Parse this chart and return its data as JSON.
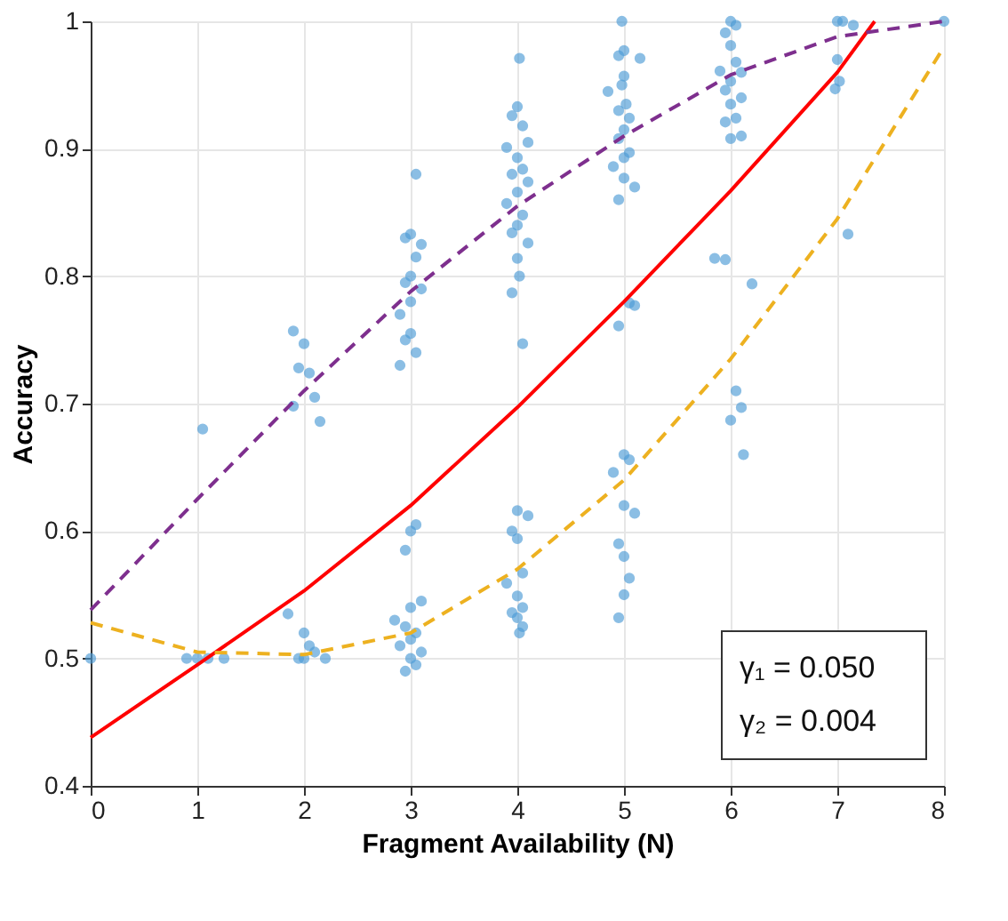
{
  "chart_data": {
    "type": "scatter",
    "xlabel": "Fragment Availability (N)",
    "ylabel": "Accuracy",
    "xlim": [
      0,
      8
    ],
    "ylim": [
      0.4,
      1
    ],
    "xticks": [
      0,
      1,
      2,
      3,
      4,
      5,
      6,
      7,
      8
    ],
    "yticks": [
      0.4,
      0.5,
      0.6,
      0.7,
      0.8,
      0.9,
      1
    ],
    "grid": true,
    "annotations": [
      "γ₁ = 0.050",
      "γ₂ = 0.004"
    ],
    "series": [
      {
        "marker": "circle",
        "color": "#4d9bd6",
        "x": [
          0,
          0.9,
          1,
          1.05,
          1.1,
          1.25,
          1.9,
          2.0,
          1.95,
          2.05,
          2.1,
          1.9,
          2.15,
          1.85,
          2.0,
          2.05,
          2.1,
          2.0,
          1.95,
          2.2,
          3.05,
          3.0,
          2.95,
          3.1,
          3.05,
          3.0,
          2.95,
          3.1,
          3.0,
          2.9,
          3.0,
          2.95,
          3.05,
          2.9,
          3.05,
          3.0,
          2.95,
          3.1,
          3.0,
          2.85,
          2.95,
          3.05,
          3.0,
          2.9,
          3.1,
          3.0,
          3.05,
          2.95,
          4.02,
          4.0,
          3.95,
          4.05,
          4.1,
          3.9,
          4.0,
          4.05,
          3.95,
          4.1,
          4.0,
          3.9,
          4.05,
          4.0,
          3.95,
          4.1,
          4.0,
          4.02,
          3.95,
          4.05,
          4.0,
          4.1,
          3.95,
          4.0,
          4.05,
          3.9,
          4.0,
          4.05,
          3.95,
          4.0,
          4.05,
          4.02,
          4.98,
          5.0,
          4.95,
          5.15,
          5.0,
          4.98,
          4.85,
          5.02,
          4.95,
          5.05,
          5.0,
          4.95,
          5.05,
          5.0,
          4.9,
          5.0,
          5.1,
          4.95,
          5.05,
          5.1,
          4.95,
          5.0,
          5.05,
          4.9,
          5.0,
          5.1,
          4.95,
          5.0,
          5.05,
          5.0,
          4.95,
          6.0,
          6.05,
          5.95,
          6.0,
          6.05,
          5.9,
          6.1,
          6.0,
          5.95,
          6.1,
          6.0,
          6.05,
          5.95,
          6.1,
          6.0,
          5.85,
          5.95,
          6.2,
          6.05,
          6.1,
          6.0,
          6.12,
          7.0,
          7.05,
          7.15,
          7.0,
          7.02,
          6.98,
          7.1,
          8.0
        ],
        "values": [
          0.5,
          0.5,
          0.5,
          0.68,
          0.5,
          0.5,
          0.757,
          0.747,
          0.728,
          0.724,
          0.705,
          0.698,
          0.686,
          0.535,
          0.52,
          0.51,
          0.505,
          0.5,
          0.5,
          0.5,
          0.88,
          0.833,
          0.83,
          0.825,
          0.815,
          0.8,
          0.795,
          0.79,
          0.78,
          0.77,
          0.755,
          0.75,
          0.74,
          0.73,
          0.605,
          0.6,
          0.585,
          0.545,
          0.54,
          0.53,
          0.525,
          0.52,
          0.515,
          0.51,
          0.505,
          0.5,
          0.495,
          0.49,
          0.971,
          0.933,
          0.926,
          0.918,
          0.905,
          0.901,
          0.893,
          0.884,
          0.88,
          0.874,
          0.866,
          0.857,
          0.848,
          0.84,
          0.834,
          0.826,
          0.814,
          0.8,
          0.787,
          0.747,
          0.616,
          0.612,
          0.6,
          0.594,
          0.567,
          0.559,
          0.549,
          0.54,
          0.536,
          0.532,
          0.525,
          0.52,
          1.0,
          0.977,
          0.973,
          0.971,
          0.957,
          0.95,
          0.945,
          0.935,
          0.93,
          0.924,
          0.915,
          0.908,
          0.897,
          0.893,
          0.886,
          0.877,
          0.87,
          0.86,
          0.779,
          0.777,
          0.761,
          0.66,
          0.656,
          0.646,
          0.62,
          0.614,
          0.59,
          0.58,
          0.563,
          0.55,
          0.532,
          1.0,
          0.997,
          0.991,
          0.981,
          0.968,
          0.961,
          0.96,
          0.953,
          0.946,
          0.94,
          0.935,
          0.924,
          0.921,
          0.91,
          0.908,
          0.814,
          0.813,
          0.794,
          0.71,
          0.697,
          0.687,
          0.66,
          1.0,
          1.0,
          0.997,
          0.97,
          0.953,
          0.947,
          0.833,
          1.0
        ]
      },
      {
        "type": "line",
        "color": "#ff0000",
        "line_style": "solid",
        "x": [
          0,
          1,
          2,
          3,
          4,
          5,
          6,
          7,
          7.35
        ],
        "values": [
          0.438,
          0.495,
          0.553,
          0.62,
          0.697,
          0.78,
          0.867,
          0.96,
          1.0
        ]
      },
      {
        "type": "line",
        "color": "#7e2f8e",
        "line_style": "dashed",
        "x": [
          0,
          1,
          2,
          3,
          4,
          5,
          6,
          7,
          8
        ],
        "values": [
          0.538,
          0.625,
          0.71,
          0.788,
          0.855,
          0.91,
          0.958,
          0.988,
          1.0
        ]
      },
      {
        "type": "line",
        "color": "#edb120",
        "line_style": "dashed",
        "x": [
          0,
          1,
          2,
          3,
          4,
          5,
          6,
          7,
          8
        ],
        "values": [
          0.528,
          0.505,
          0.503,
          0.52,
          0.57,
          0.64,
          0.735,
          0.845,
          0.98
        ]
      }
    ]
  }
}
